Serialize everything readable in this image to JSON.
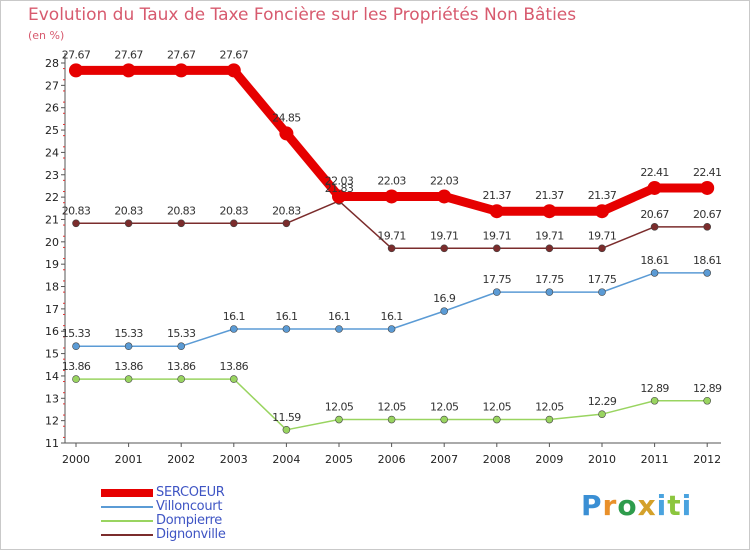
{
  "header": {
    "title": "Evolution du Taux de Taxe Foncière sur les Propriétés Non Bâties",
    "subtitle": "(en %)"
  },
  "logo": {
    "text": "Proxiti",
    "colors": [
      "#3a8fd4",
      "#e9902a",
      "#2e9c4c",
      "#d4a12a",
      "#4aa3df",
      "#8cc63e"
    ]
  },
  "chart_data": {
    "type": "line",
    "title": "Evolution du Taux de Taxe Foncière sur les Propriétés Non Bâties",
    "ylabel": "(en %)",
    "xlabel": "",
    "ylim": [
      11,
      28
    ],
    "yticks": [
      "11",
      "12",
      "13",
      "14",
      "15",
      "16",
      "17",
      "18",
      "19",
      "20",
      "21",
      "22",
      "23",
      "24",
      "25",
      "26",
      "27",
      "28"
    ],
    "x": [
      "2000",
      "2001",
      "2002",
      "2003",
      "2004",
      "2005",
      "2006",
      "2007",
      "2008",
      "2009",
      "2010",
      "2011",
      "2012"
    ],
    "series": [
      {
        "name": "SERCOEUR",
        "color": "#e60000",
        "bold": true,
        "values": [
          27.67,
          27.67,
          27.67,
          27.67,
          24.85,
          22.03,
          22.03,
          22.03,
          21.37,
          21.37,
          21.37,
          22.41,
          22.41
        ],
        "labels": [
          "27.67",
          "27.67",
          "27.67",
          "27.67",
          "24.85",
          "22.03",
          "22.03",
          "22.03",
          "21.37",
          "21.37",
          "21.37",
          "22.41",
          "22.41"
        ]
      },
      {
        "name": "Villoncourt",
        "color": "#5b9bd5",
        "bold": false,
        "values": [
          15.33,
          15.33,
          15.33,
          16.1,
          16.1,
          16.1,
          16.1,
          16.9,
          17.75,
          17.75,
          17.75,
          18.61,
          18.61
        ],
        "labels": [
          "15.33",
          "15.33",
          "15.33",
          "16.1",
          "16.1",
          "16.1",
          "16.1",
          "16.9",
          "17.75",
          "17.75",
          "17.75",
          "18.61",
          "18.61"
        ]
      },
      {
        "name": "Dompierre",
        "color": "#99d460",
        "bold": false,
        "values": [
          13.86,
          13.86,
          13.86,
          13.86,
          11.59,
          12.05,
          12.05,
          12.05,
          12.05,
          12.05,
          12.29,
          12.89,
          12.89
        ],
        "labels": [
          "13.86",
          "13.86",
          "13.86",
          "13.86",
          "11.59",
          "12.05",
          "12.05",
          "12.05",
          "12.05",
          "12.05",
          "12.29",
          "12.89",
          "12.89"
        ]
      },
      {
        "name": "Dignonville",
        "color": "#7b2c2c",
        "bold": false,
        "values": [
          20.83,
          20.83,
          20.83,
          20.83,
          20.83,
          21.83,
          19.71,
          19.71,
          19.71,
          19.71,
          19.71,
          20.67,
          20.67
        ],
        "labels": [
          "20.83",
          "20.83",
          "20.83",
          "20.83",
          "20.83",
          "21.83",
          "19.71",
          "19.71",
          "19.71",
          "19.71",
          "19.71",
          "20.67",
          "20.67"
        ]
      }
    ],
    "grid": false,
    "legend_position": "bottom-left"
  }
}
